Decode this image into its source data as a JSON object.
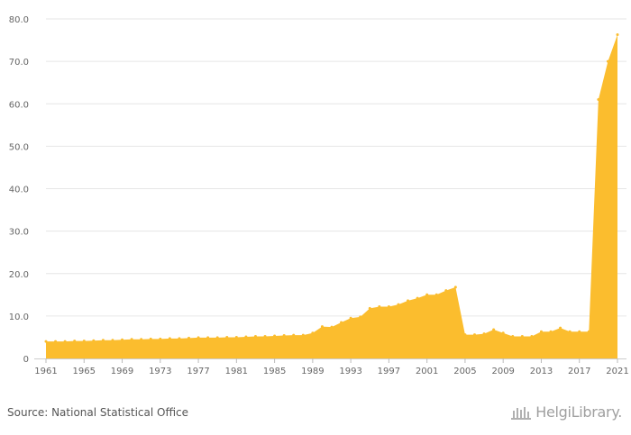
{
  "chart_data": {
    "type": "area",
    "title": "",
    "xlabel": "",
    "ylabel": "",
    "xlim": [
      1961,
      2021
    ],
    "ylim": [
      0,
      80
    ],
    "yticks": [
      "0",
      "10.0",
      "20.0",
      "30.0",
      "40.0",
      "50.0",
      "60.0",
      "70.0",
      "80.0"
    ],
    "xticks": [
      "1961",
      "1965",
      "1969",
      "1973",
      "1977",
      "1981",
      "1985",
      "1989",
      "1993",
      "1997",
      "2001",
      "2005",
      "2009",
      "2013",
      "2017",
      "2021"
    ],
    "grid": true,
    "legend": "none",
    "color": "#fbbd2e",
    "x": [
      1961,
      1962,
      1963,
      1964,
      1965,
      1966,
      1967,
      1968,
      1969,
      1970,
      1971,
      1972,
      1973,
      1974,
      1975,
      1976,
      1977,
      1978,
      1979,
      1980,
      1981,
      1982,
      1983,
      1984,
      1985,
      1986,
      1987,
      1988,
      1989,
      1990,
      1991,
      1992,
      1993,
      1994,
      1995,
      1996,
      1997,
      1998,
      1999,
      2000,
      2001,
      2002,
      2003,
      2004,
      2005,
      2006,
      2007,
      2008,
      2009,
      2010,
      2011,
      2012,
      2013,
      2014,
      2015,
      2016,
      2017,
      2018,
      2019,
      2020,
      2021
    ],
    "values": [
      4.0,
      4.0,
      4.0,
      4.1,
      4.1,
      4.2,
      4.3,
      4.3,
      4.4,
      4.5,
      4.5,
      4.6,
      4.6,
      4.7,
      4.7,
      4.8,
      4.9,
      4.9,
      4.9,
      5.0,
      5.0,
      5.1,
      5.2,
      5.2,
      5.3,
      5.4,
      5.5,
      5.5,
      6.0,
      7.5,
      7.4,
      8.5,
      9.5,
      9.8,
      11.8,
      12.2,
      12.2,
      12.7,
      13.6,
      14.2,
      15.0,
      15.0,
      16.0,
      16.8,
      5.6,
      5.6,
      5.8,
      6.8,
      6.0,
      5.2,
      5.2,
      5.2,
      6.3,
      6.3,
      7.2,
      6.3,
      6.3,
      6.3,
      61.0,
      70.0,
      76.3
    ]
  },
  "footer": {
    "source": "Source: National Statistical Office",
    "brand": "HelgiLibrary."
  }
}
